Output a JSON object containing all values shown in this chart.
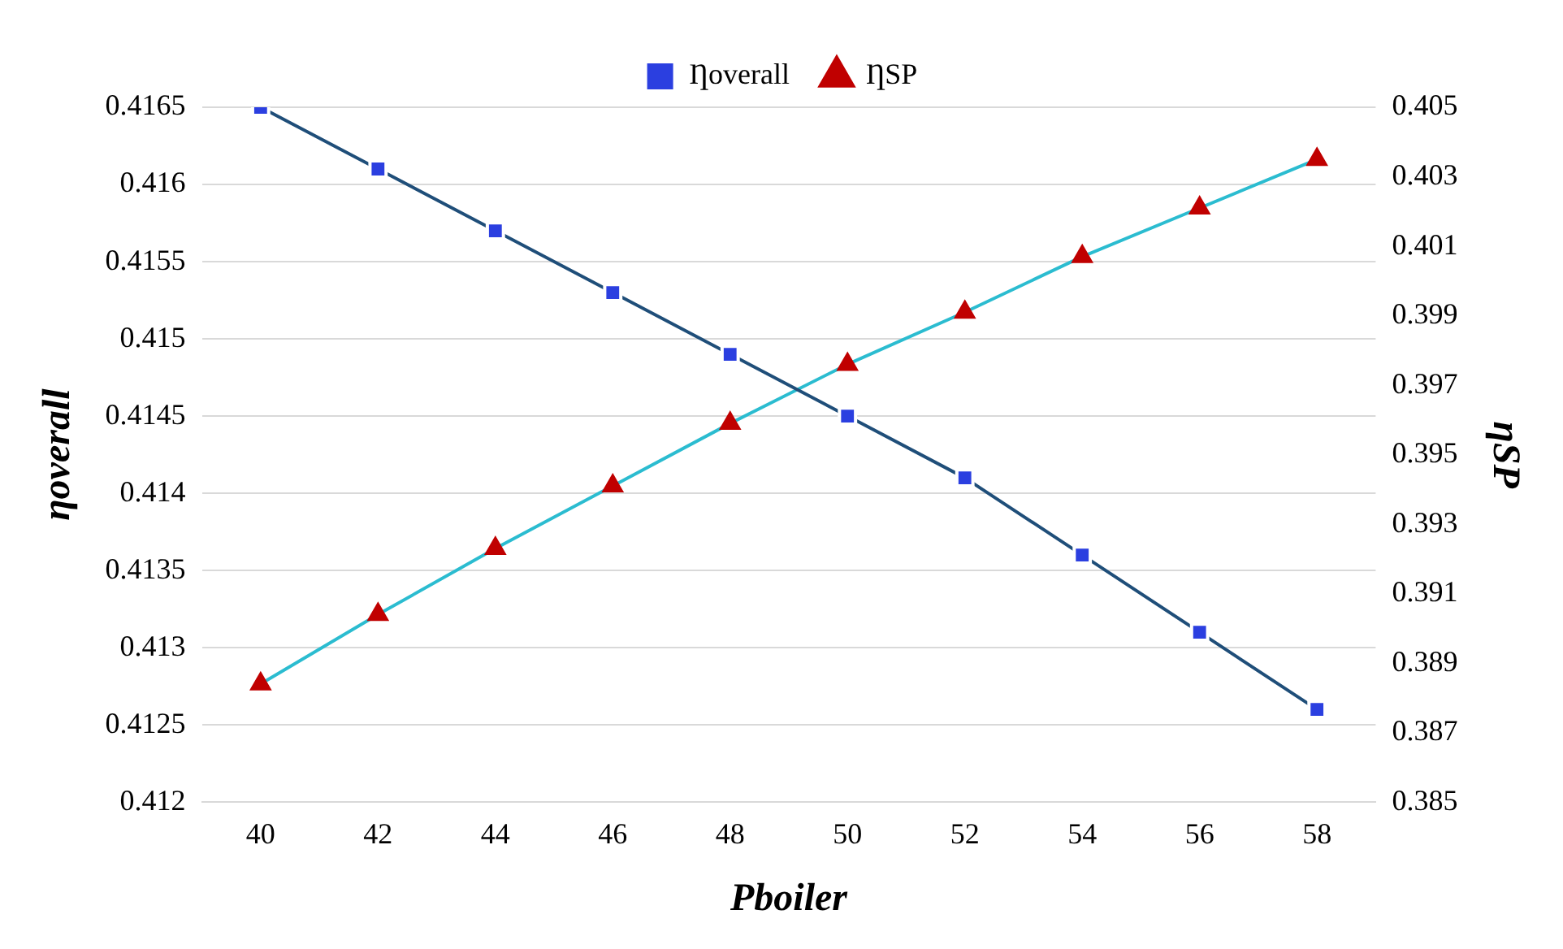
{
  "chart_data": {
    "type": "line",
    "xlabel": "Pboiler",
    "ylabel": "ηoverall",
    "y2label": "ηSP",
    "categories": [
      "40",
      "42",
      "44",
      "46",
      "48",
      "50",
      "52",
      "54",
      "56",
      "58"
    ],
    "series": [
      {
        "name": "Ƞoverall",
        "color": "#1f4e79",
        "marker": "square",
        "values": [
          0.4165,
          0.4161,
          0.4157,
          0.4153,
          0.4149,
          0.4145,
          0.4141,
          0.4136,
          0.4131,
          0.4126
        ]
      },
      {
        "name": "ȠSP",
        "color": "#2bbcd0",
        "marker": "triangle",
        "axis": "y2",
        "values": [
          0.3884,
          0.3904,
          0.3923,
          0.3941,
          0.3959,
          0.3976,
          0.3991,
          0.4007,
          0.4021,
          0.4035
        ]
      }
    ],
    "ylim": [
      0.412,
      0.4165
    ],
    "yticks": [
      0.412,
      0.4125,
      0.413,
      0.4135,
      0.414,
      0.4145,
      0.415,
      0.4155,
      0.416,
      0.4165
    ],
    "y2lim": [
      0.385,
      0.405
    ],
    "y2ticks": [
      0.385,
      0.387,
      0.389,
      0.391,
      0.393,
      0.395,
      0.397,
      0.399,
      0.401,
      0.403,
      0.405
    ],
    "grid": "y",
    "legend": "top"
  }
}
